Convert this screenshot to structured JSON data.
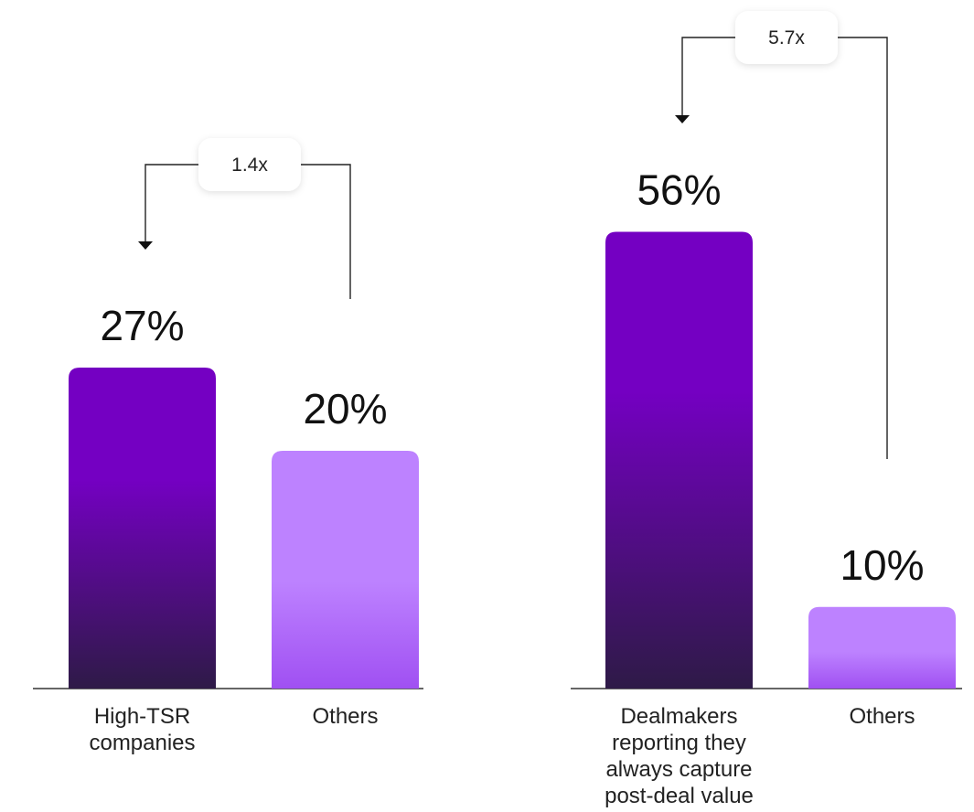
{
  "chart_data": [
    {
      "type": "bar",
      "categories": [
        "High-TSR companies",
        "Others"
      ],
      "category_lines": [
        [
          "High-TSR",
          "companies"
        ],
        [
          "Others"
        ]
      ],
      "values": [
        27,
        20
      ],
      "value_labels": [
        "27%",
        "20%"
      ],
      "ratio_label": "1.4x",
      "ylim": [
        0,
        60
      ],
      "grid": false,
      "bar_colors": [
        "#7400c2",
        "#bd82ff"
      ]
    },
    {
      "type": "bar",
      "categories": [
        "Dealmakers reporting they always capture post-deal value",
        "Others"
      ],
      "category_lines": [
        [
          "Dealmakers",
          "reporting they",
          "always capture",
          "post-deal value"
        ],
        [
          "Others"
        ]
      ],
      "values": [
        56,
        10
      ],
      "value_labels": [
        "56%",
        "10%"
      ],
      "ratio_label": "5.7x",
      "ylim": [
        0,
        60
      ],
      "grid": false,
      "bar_colors": [
        "#7400c2",
        "#bd82ff"
      ]
    }
  ],
  "colors": {
    "primary_top": "#7400c2",
    "primary_bottom": "#2e1a47",
    "secondary_top": "#bd82ff",
    "secondary_bottom": "#a050f2"
  }
}
